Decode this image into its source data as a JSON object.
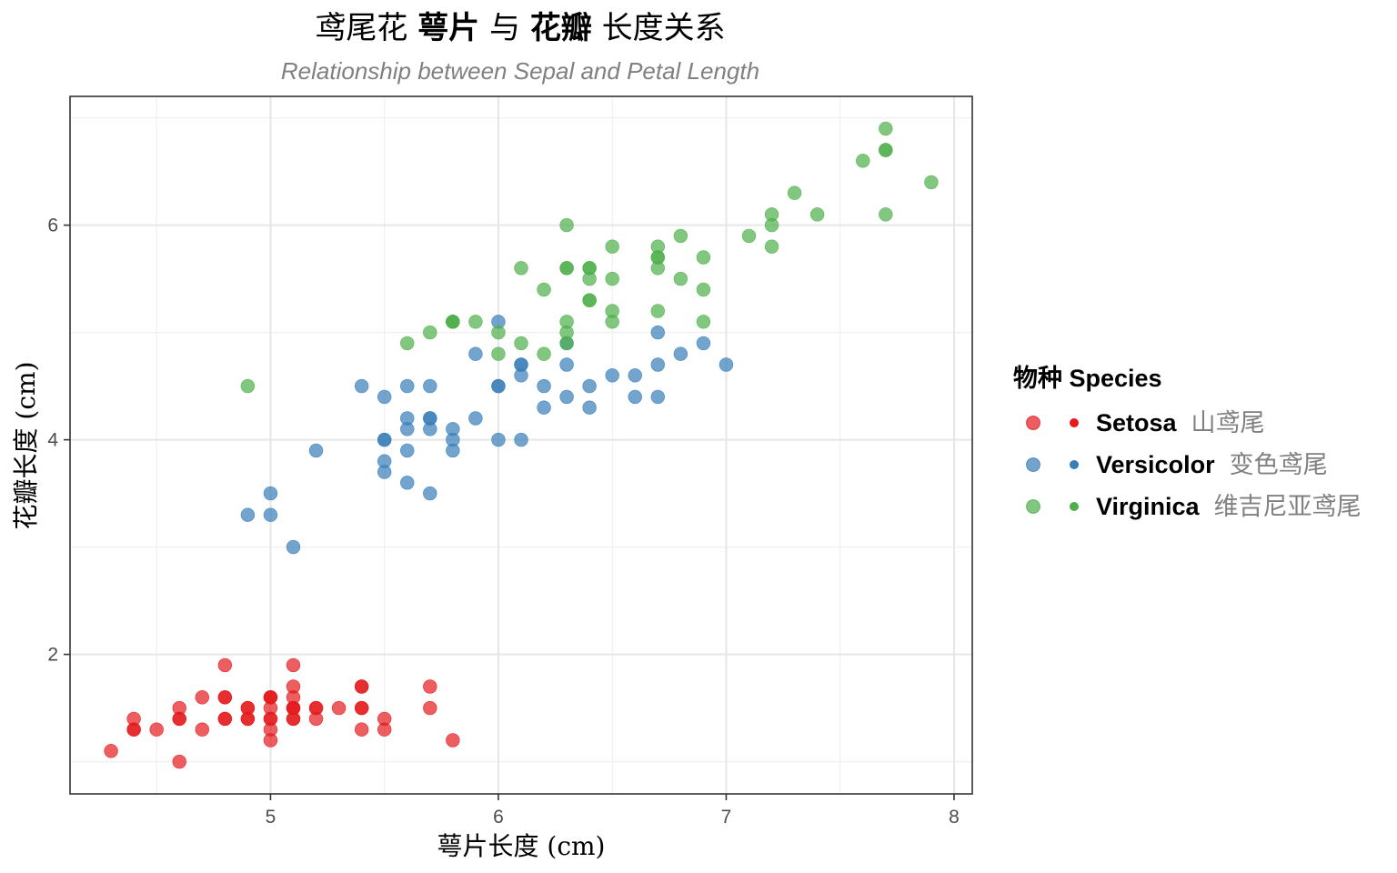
{
  "chart_data": {
    "type": "scatter",
    "title": {
      "segments": [
        {
          "text": "鸢尾花 ",
          "bold": false
        },
        {
          "text": "萼片",
          "bold": true
        },
        {
          "text": " 与 ",
          "bold": false
        },
        {
          "text": "花瓣",
          "bold": true
        },
        {
          "text": " 长度关系",
          "bold": false
        }
      ]
    },
    "subtitle": "Relationship between Sepal and Petal Length",
    "xlabel": "萼片长度 (cm)",
    "ylabel": "花瓣长度 (cm)",
    "xlim": [
      4.12,
      8.08
    ],
    "ylim": [
      0.7,
      7.2
    ],
    "xticks": [
      5,
      6,
      7,
      8
    ],
    "yticks": [
      2,
      4,
      6
    ],
    "grid": true,
    "legend": {
      "title": "物种 Species",
      "position": "right"
    },
    "colors": {
      "setosa": "#e41a1c",
      "versicolor": "#377eb8",
      "virginica": "#4daf4a"
    },
    "series": [
      {
        "key": "setosa",
        "name": "Setosa",
        "name_cn": "山鸢尾",
        "points": [
          [
            5.1,
            1.4
          ],
          [
            4.9,
            1.4
          ],
          [
            4.7,
            1.3
          ],
          [
            4.6,
            1.5
          ],
          [
            5.0,
            1.4
          ],
          [
            5.4,
            1.7
          ],
          [
            4.6,
            1.4
          ],
          [
            5.0,
            1.5
          ],
          [
            4.4,
            1.4
          ],
          [
            4.9,
            1.5
          ],
          [
            5.4,
            1.5
          ],
          [
            4.8,
            1.6
          ],
          [
            4.8,
            1.4
          ],
          [
            4.3,
            1.1
          ],
          [
            5.8,
            1.2
          ],
          [
            5.7,
            1.5
          ],
          [
            5.4,
            1.3
          ],
          [
            5.1,
            1.4
          ],
          [
            5.7,
            1.7
          ],
          [
            5.1,
            1.5
          ],
          [
            5.4,
            1.7
          ],
          [
            5.1,
            1.5
          ],
          [
            4.6,
            1.0
          ],
          [
            5.1,
            1.7
          ],
          [
            4.8,
            1.9
          ],
          [
            5.0,
            1.6
          ],
          [
            5.0,
            1.6
          ],
          [
            5.2,
            1.5
          ],
          [
            5.2,
            1.4
          ],
          [
            4.7,
            1.6
          ],
          [
            4.8,
            1.6
          ],
          [
            5.4,
            1.5
          ],
          [
            5.2,
            1.5
          ],
          [
            5.5,
            1.4
          ],
          [
            4.9,
            1.5
          ],
          [
            5.0,
            1.2
          ],
          [
            5.5,
            1.3
          ],
          [
            4.9,
            1.4
          ],
          [
            4.4,
            1.3
          ],
          [
            5.1,
            1.5
          ],
          [
            5.0,
            1.3
          ],
          [
            4.5,
            1.3
          ],
          [
            4.4,
            1.3
          ],
          [
            5.0,
            1.6
          ],
          [
            5.1,
            1.9
          ],
          [
            4.8,
            1.4
          ],
          [
            5.1,
            1.6
          ],
          [
            4.6,
            1.4
          ],
          [
            5.3,
            1.5
          ],
          [
            5.0,
            1.4
          ]
        ]
      },
      {
        "key": "versicolor",
        "name": "Versicolor",
        "name_cn": "变色鸢尾",
        "points": [
          [
            7.0,
            4.7
          ],
          [
            6.4,
            4.5
          ],
          [
            6.9,
            4.9
          ],
          [
            5.5,
            4.0
          ],
          [
            6.5,
            4.6
          ],
          [
            5.7,
            4.5
          ],
          [
            6.3,
            4.7
          ],
          [
            4.9,
            3.3
          ],
          [
            6.6,
            4.6
          ],
          [
            5.2,
            3.9
          ],
          [
            5.0,
            3.5
          ],
          [
            5.9,
            4.2
          ],
          [
            6.0,
            4.0
          ],
          [
            6.1,
            4.7
          ],
          [
            5.6,
            3.6
          ],
          [
            6.7,
            4.4
          ],
          [
            5.6,
            4.5
          ],
          [
            5.8,
            4.1
          ],
          [
            6.2,
            4.5
          ],
          [
            5.6,
            3.9
          ],
          [
            5.9,
            4.8
          ],
          [
            6.1,
            4.0
          ],
          [
            6.3,
            4.9
          ],
          [
            6.1,
            4.7
          ],
          [
            6.4,
            4.3
          ],
          [
            6.6,
            4.4
          ],
          [
            6.8,
            4.8
          ],
          [
            6.7,
            5.0
          ],
          [
            6.0,
            4.5
          ],
          [
            5.7,
            3.5
          ],
          [
            5.5,
            3.8
          ],
          [
            5.5,
            3.7
          ],
          [
            5.8,
            3.9
          ],
          [
            6.0,
            5.1
          ],
          [
            5.4,
            4.5
          ],
          [
            6.0,
            4.5
          ],
          [
            6.7,
            4.7
          ],
          [
            6.3,
            4.4
          ],
          [
            5.6,
            4.1
          ],
          [
            5.5,
            4.0
          ],
          [
            5.5,
            4.4
          ],
          [
            6.1,
            4.6
          ],
          [
            5.8,
            4.0
          ],
          [
            5.0,
            3.3
          ],
          [
            5.6,
            4.2
          ],
          [
            5.7,
            4.2
          ],
          [
            5.7,
            4.2
          ],
          [
            6.2,
            4.3
          ],
          [
            5.1,
            3.0
          ],
          [
            5.7,
            4.1
          ]
        ]
      },
      {
        "key": "virginica",
        "name": "Virginica",
        "name_cn": "维吉尼亚鸢尾",
        "points": [
          [
            6.3,
            6.0
          ],
          [
            5.8,
            5.1
          ],
          [
            7.1,
            5.9
          ],
          [
            6.3,
            5.6
          ],
          [
            6.5,
            5.8
          ],
          [
            7.6,
            6.6
          ],
          [
            4.9,
            4.5
          ],
          [
            7.3,
            6.3
          ],
          [
            6.7,
            5.8
          ],
          [
            7.2,
            6.1
          ],
          [
            6.5,
            5.1
          ],
          [
            6.4,
            5.3
          ],
          [
            6.8,
            5.5
          ],
          [
            5.7,
            5.0
          ],
          [
            5.8,
            5.1
          ],
          [
            6.4,
            5.3
          ],
          [
            6.5,
            5.5
          ],
          [
            7.7,
            6.7
          ],
          [
            7.7,
            6.9
          ],
          [
            6.0,
            5.0
          ],
          [
            6.9,
            5.7
          ],
          [
            5.6,
            4.9
          ],
          [
            7.7,
            6.7
          ],
          [
            6.3,
            4.9
          ],
          [
            6.7,
            5.7
          ],
          [
            7.2,
            6.0
          ],
          [
            6.2,
            4.8
          ],
          [
            6.1,
            4.9
          ],
          [
            6.4,
            5.6
          ],
          [
            7.2,
            5.8
          ],
          [
            7.4,
            6.1
          ],
          [
            7.9,
            6.4
          ],
          [
            6.4,
            5.6
          ],
          [
            6.3,
            5.1
          ],
          [
            6.1,
            5.6
          ],
          [
            7.7,
            6.1
          ],
          [
            6.3,
            5.6
          ],
          [
            6.4,
            5.5
          ],
          [
            6.0,
            4.8
          ],
          [
            6.9,
            5.4
          ],
          [
            6.7,
            5.6
          ],
          [
            6.9,
            5.1
          ],
          [
            5.8,
            5.1
          ],
          [
            6.8,
            5.9
          ],
          [
            6.7,
            5.7
          ],
          [
            6.7,
            5.2
          ],
          [
            6.3,
            5.0
          ],
          [
            6.5,
            5.2
          ],
          [
            6.2,
            5.4
          ],
          [
            5.9,
            5.1
          ]
        ]
      }
    ]
  }
}
